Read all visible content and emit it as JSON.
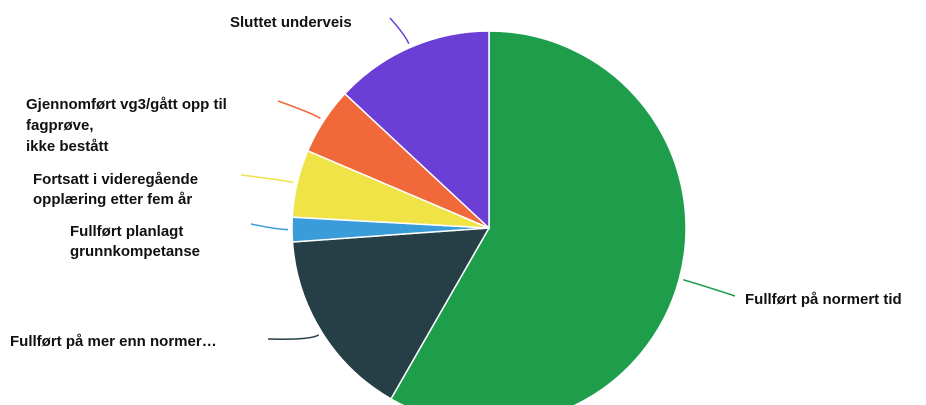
{
  "chart_data": {
    "type": "pie",
    "title": "",
    "slices": [
      {
        "label": "Fullført på normert tid",
        "value": 58,
        "color": "#1e9e4a"
      },
      {
        "label": "Fullført på mer enn normer…",
        "value": 15.5,
        "color": "#263f47"
      },
      {
        "label": "Fullført planlagt grunnkompetanse",
        "value": 2,
        "color": "#3a9cd8"
      },
      {
        "label": "Fortsatt i videregående opplæring etter fem år",
        "value": 5.5,
        "color": "#f0e348"
      },
      {
        "label": "Gjennomført vg3/gått opp til fagprøve, ikke bestått",
        "value": 5.5,
        "color": "#f1683a"
      },
      {
        "label": "Sluttet underveis",
        "value": 13,
        "color": "#6b3fd6"
      }
    ],
    "legend": "none",
    "data_labels": "outside with leader lines"
  }
}
